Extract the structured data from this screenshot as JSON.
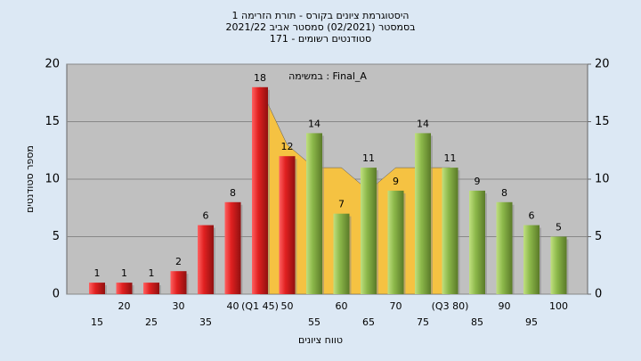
{
  "chart_data": {
    "type": "bar",
    "title_lines": [
      "היסטוגרמת ציונים בקורס - תורת הזרימה 1",
      "בסמסטר (02/2021) סמסטר אביב 2021/22",
      "סטודנטים רשומים - 171"
    ],
    "annotation": "במשימה : Final_A",
    "xlabel": "טווח ציונים",
    "ylabel": "מספר סטודנטים",
    "categories": [
      "15",
      "20",
      "25",
      "30",
      "35",
      "40",
      "(Q1 45)",
      "50",
      "55",
      "60",
      "65",
      "70",
      "75",
      "(Q3 80)",
      "85",
      "90",
      "95",
      "100"
    ],
    "values": [
      1,
      1,
      1,
      2,
      6,
      8,
      18,
      12,
      14,
      7,
      11,
      9,
      14,
      11,
      9,
      8,
      6,
      5
    ],
    "colors": [
      "#e02020",
      "#e02020",
      "#e02020",
      "#e02020",
      "#e02020",
      "#e02020",
      "#e02020",
      "#e02020",
      "#8cb84a",
      "#8cb84a",
      "#8cb84a",
      "#8cb84a",
      "#8cb84a",
      "#8cb84a",
      "#8cb84a",
      "#8cb84a",
      "#8cb84a",
      "#8cb84a"
    ],
    "area_values": [
      null,
      null,
      null,
      null,
      null,
      null,
      18,
      13,
      11,
      11,
      9,
      11,
      11,
      11,
      null,
      null,
      null,
      null
    ],
    "area_color": "#f5c242",
    "ylim": [
      0,
      20
    ],
    "yticks": [
      0,
      5,
      10,
      15,
      20
    ],
    "y2lim": [
      0,
      20
    ],
    "y2ticks": [
      0,
      5,
      10,
      15,
      20
    ],
    "grid": true
  }
}
